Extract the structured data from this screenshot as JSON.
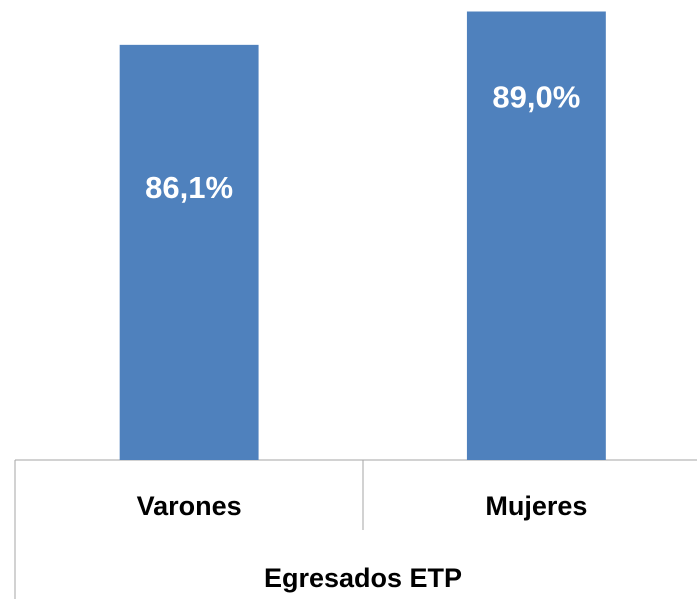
{
  "chart_data": {
    "type": "bar",
    "x_label": "Egresados ETP",
    "categories": [
      "Varones",
      "Mujeres"
    ],
    "values": [
      86.1,
      89.0
    ],
    "value_labels": [
      "86,1%",
      "89,0%"
    ],
    "color": "#4f81bd",
    "ylim": [
      50,
      90
    ]
  }
}
